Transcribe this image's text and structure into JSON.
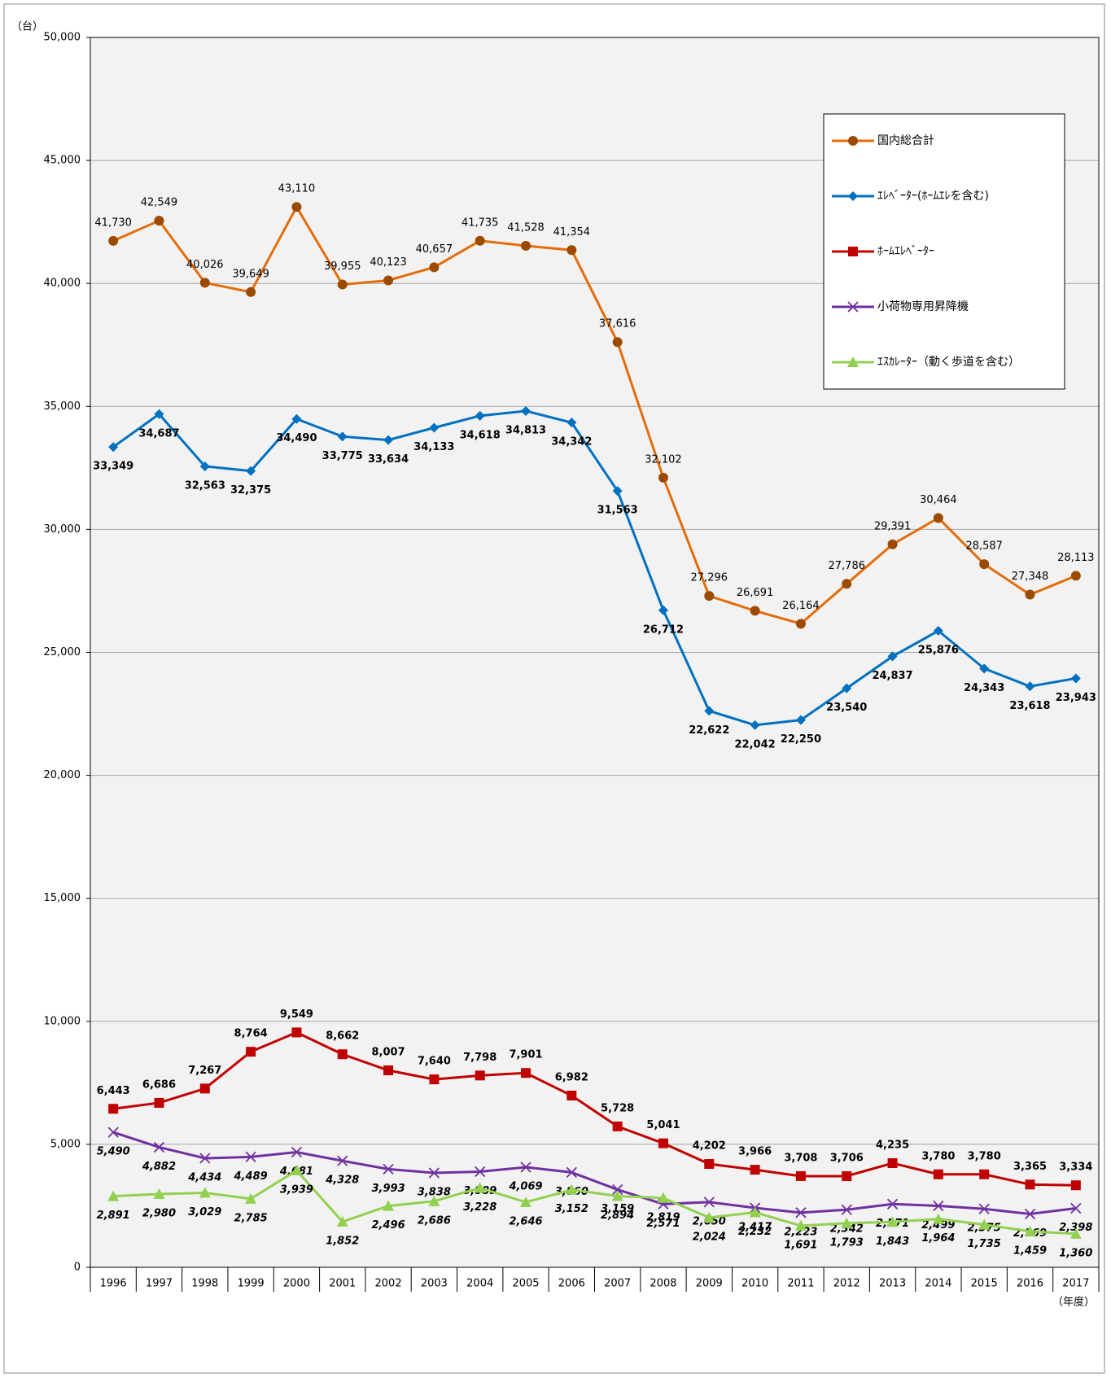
{
  "chart_data": {
    "type": "line",
    "y_unit": "（台）",
    "x_unit": "（年度）",
    "categories": [
      "1996",
      "1997",
      "1998",
      "1999",
      "2000",
      "2001",
      "2002",
      "2003",
      "2004",
      "2005",
      "2006",
      "2007",
      "2008",
      "2009",
      "2010",
      "2011",
      "2012",
      "2013",
      "2014",
      "2015",
      "2016",
      "2017"
    ],
    "ylim": [
      0,
      50000
    ],
    "yticks": [
      0,
      {
        "value": 5000,
        "label": "5,000"
      },
      {
        "value": 10000,
        "label": "10,000"
      },
      {
        "value": 15000,
        "label": "15,000"
      },
      {
        "value": 20000,
        "label": "20,000"
      },
      {
        "value": 25000,
        "label": "25,000"
      },
      {
        "value": 30000,
        "label": "30,000"
      },
      {
        "value": 35000,
        "label": "35,000"
      },
      {
        "value": 40000,
        "label": "40,000"
      },
      {
        "value": 45000,
        "label": "45,000"
      },
      {
        "value": 50000,
        "label": "50,000"
      }
    ],
    "grid": true,
    "legend": "upper right",
    "series": [
      {
        "name": "国内総合計",
        "color": "#E46C0A",
        "marker": "circle",
        "marker_color": "#9C4A00",
        "label_color": "#E46C0A",
        "label_position": "above",
        "values": [
          41730,
          42549,
          40026,
          39649,
          43110,
          39955,
          40123,
          40657,
          41735,
          41528,
          41354,
          37616,
          32102,
          27296,
          26691,
          26164,
          27786,
          29391,
          30464,
          28587,
          27348,
          28113
        ],
        "value_labels": [
          "41,730",
          "42,549",
          "40,026",
          "39,649",
          "43,110",
          "39,955",
          "40,123",
          "40,657",
          "41,735",
          "41,528",
          "41,354",
          "37,616",
          "32,102",
          "27,296",
          "26,691",
          "26,164",
          "27,786",
          "29,391",
          "30,464",
          "28,587",
          "27,348",
          "28,113"
        ]
      },
      {
        "name": "ｴﾚﾍﾞｰﾀｰ(ﾎｰﾑｴﾚを含む)",
        "color": "#0070C0",
        "marker": "diamond",
        "marker_color": "#0070C0",
        "label_color": "#0070C0",
        "label_position": "below",
        "values": [
          33349,
          34687,
          32563,
          32375,
          34490,
          33775,
          33634,
          34133,
          34618,
          34813,
          34342,
          31563,
          26712,
          22622,
          22042,
          22250,
          23540,
          24837,
          25876,
          24343,
          23618,
          23943
        ],
        "value_labels": [
          "33,349",
          "34,687",
          "32,563",
          "32,375",
          "34,490",
          "33,775",
          "33,634",
          "34,133",
          "34,618",
          "34,813",
          "34,342",
          "31,563",
          "26,712",
          "22,622",
          "22,042",
          "22,250",
          "23,540",
          "24,837",
          "25,876",
          "24,343",
          "23,618",
          "23,943"
        ]
      },
      {
        "name": "ﾎｰﾑｴﾚﾍﾞｰﾀｰ",
        "color": "#C00000",
        "marker": "square",
        "marker_color": "#C00000",
        "label_color": "#C00000",
        "label_position": "above",
        "values": [
          6443,
          6686,
          7267,
          8764,
          9549,
          8662,
          8007,
          7640,
          7798,
          7901,
          6982,
          5728,
          5041,
          4202,
          3966,
          3708,
          3706,
          4235,
          3780,
          3780,
          3365,
          3334
        ],
        "value_labels": [
          "6,443",
          "6,686",
          "7,267",
          "8,764",
          "9,549",
          "8,662",
          "8,007",
          "7,640",
          "7,798",
          "7,901",
          "6,982",
          "5,728",
          "5,041",
          "4,202",
          "3,966",
          "3,708",
          "3,706",
          "4,235",
          "3,780",
          "3,780",
          "3,365",
          "3,334"
        ]
      },
      {
        "name": "小荷物専用昇降機",
        "color": "#7030A0",
        "marker": "x",
        "marker_color": "#7030A0",
        "label_color": "#7030A0",
        "label_position": "below",
        "values": [
          5490,
          4882,
          4434,
          4489,
          4681,
          4328,
          3993,
          3838,
          3889,
          4069,
          3860,
          3159,
          2571,
          2650,
          2417,
          2223,
          2342,
          2571,
          2499,
          2375,
          2169,
          2398
        ],
        "value_labels": [
          "5,490",
          "4,882",
          "4,434",
          "4,489",
          "4,681",
          "4,328",
          "3,993",
          "3,838",
          "3,889",
          "4,069",
          "3,860",
          "3,159",
          "2,571",
          "2,650",
          "2,417",
          "2,223",
          "2,342",
          "2,571",
          "2,499",
          "2,375",
          "2,169",
          "2,398"
        ]
      },
      {
        "name": "ｴｽｶﾚｰﾀｰ（動く歩道を含む）",
        "color": "#92D050",
        "marker": "triangle",
        "marker_color": "#92D050",
        "label_color": "#76923C",
        "label_position": "below",
        "values": [
          2891,
          2980,
          3029,
          2785,
          3939,
          1852,
          2496,
          2686,
          3228,
          2646,
          3152,
          2894,
          2819,
          2024,
          2232,
          1691,
          1793,
          1843,
          1964,
          1735,
          1459,
          1360
        ],
        "value_labels": [
          "2,891",
          "2,980",
          "3,029",
          "2,785",
          "3,939",
          "1,852",
          "2,496",
          "2,686",
          "3,228",
          "2,646",
          "3,152",
          "2,894",
          "2,819",
          "2,024",
          "2,232",
          "1,691",
          "1,793",
          "1,843",
          "1,964",
          "1,735",
          "1,459",
          "1,360"
        ]
      }
    ]
  }
}
